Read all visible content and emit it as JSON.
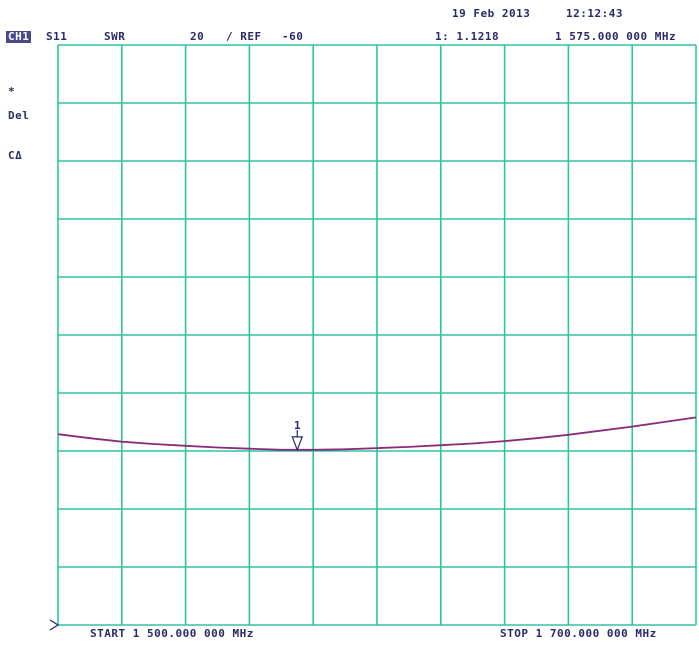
{
  "header": {
    "date": "19 Feb 2013",
    "time": "12:12:43",
    "channel_badge": "CH1",
    "parameter": "S11",
    "format": "SWR",
    "scale": "20",
    "ref_label": "/ REF",
    "ref_value": "-60",
    "marker_readout": "1: 1.1218",
    "marker_freq": "1 575.000 000 MHz"
  },
  "side": {
    "asterisk": "*",
    "del": "Del",
    "c_delta": "CΔ"
  },
  "colors": {
    "grid": "#2ec4a0",
    "trace": "#8a2a7a",
    "text": "#2a2a6a",
    "badge_bg": "#4a4a8a"
  },
  "chart_data": {
    "type": "line",
    "title": "",
    "start_label": "START 1 500.000 000 MHz",
    "stop_label": "STOP 1 700.000 000 MHz",
    "x_start_mhz": 1500,
    "x_stop_mhz": 1700,
    "grid_divisions_x": 10,
    "grid_divisions_y": 10,
    "grid": true,
    "marker": {
      "label": "1",
      "x_mhz": 1575,
      "y_div": 3.02
    },
    "series": [
      {
        "x": [
          1500,
          1510,
          1520,
          1530,
          1540,
          1550,
          1560,
          1570,
          1575,
          1580,
          1590,
          1600,
          1610,
          1620,
          1630,
          1640,
          1650,
          1660,
          1670,
          1680,
          1690,
          1700
        ],
        "y": [
          3.29,
          3.22,
          3.16,
          3.12,
          3.09,
          3.06,
          3.04,
          3.02,
          3.02,
          3.02,
          3.03,
          3.05,
          3.07,
          3.1,
          3.13,
          3.17,
          3.22,
          3.28,
          3.35,
          3.42,
          3.5,
          3.58
        ]
      }
    ]
  }
}
